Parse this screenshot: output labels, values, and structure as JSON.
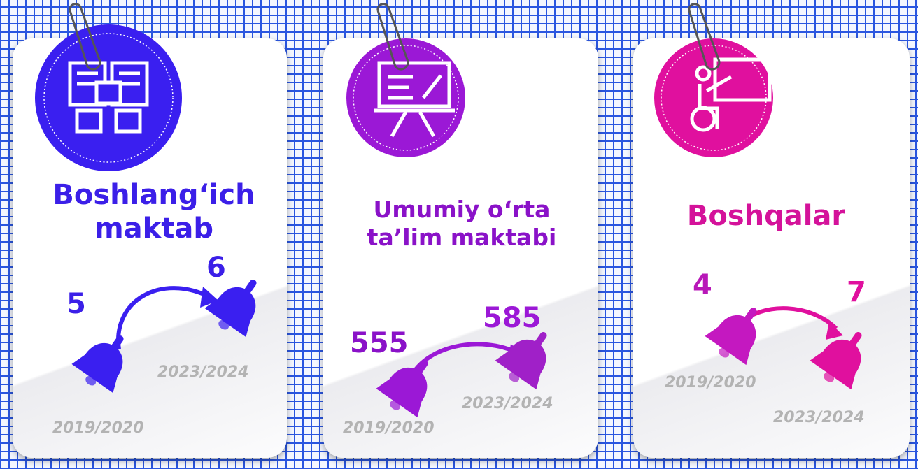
{
  "cards": [
    {
      "title": "Boshlang‘ich maktab",
      "items": [
        {
          "value": "5",
          "year": "2019/2020"
        },
        {
          "value": "6",
          "year": "2023/2024"
        }
      ]
    },
    {
      "title": "Umumiy o‘rta ta’lim maktabi",
      "items": [
        {
          "value": "555",
          "year": "2019/2020"
        },
        {
          "value": "585",
          "year": "2023/2024"
        }
      ]
    },
    {
      "title": "Boshqalar",
      "items": [
        {
          "value": "4",
          "year": "2019/2020"
        },
        {
          "value": "7",
          "year": "2023/2024"
        }
      ]
    }
  ]
}
